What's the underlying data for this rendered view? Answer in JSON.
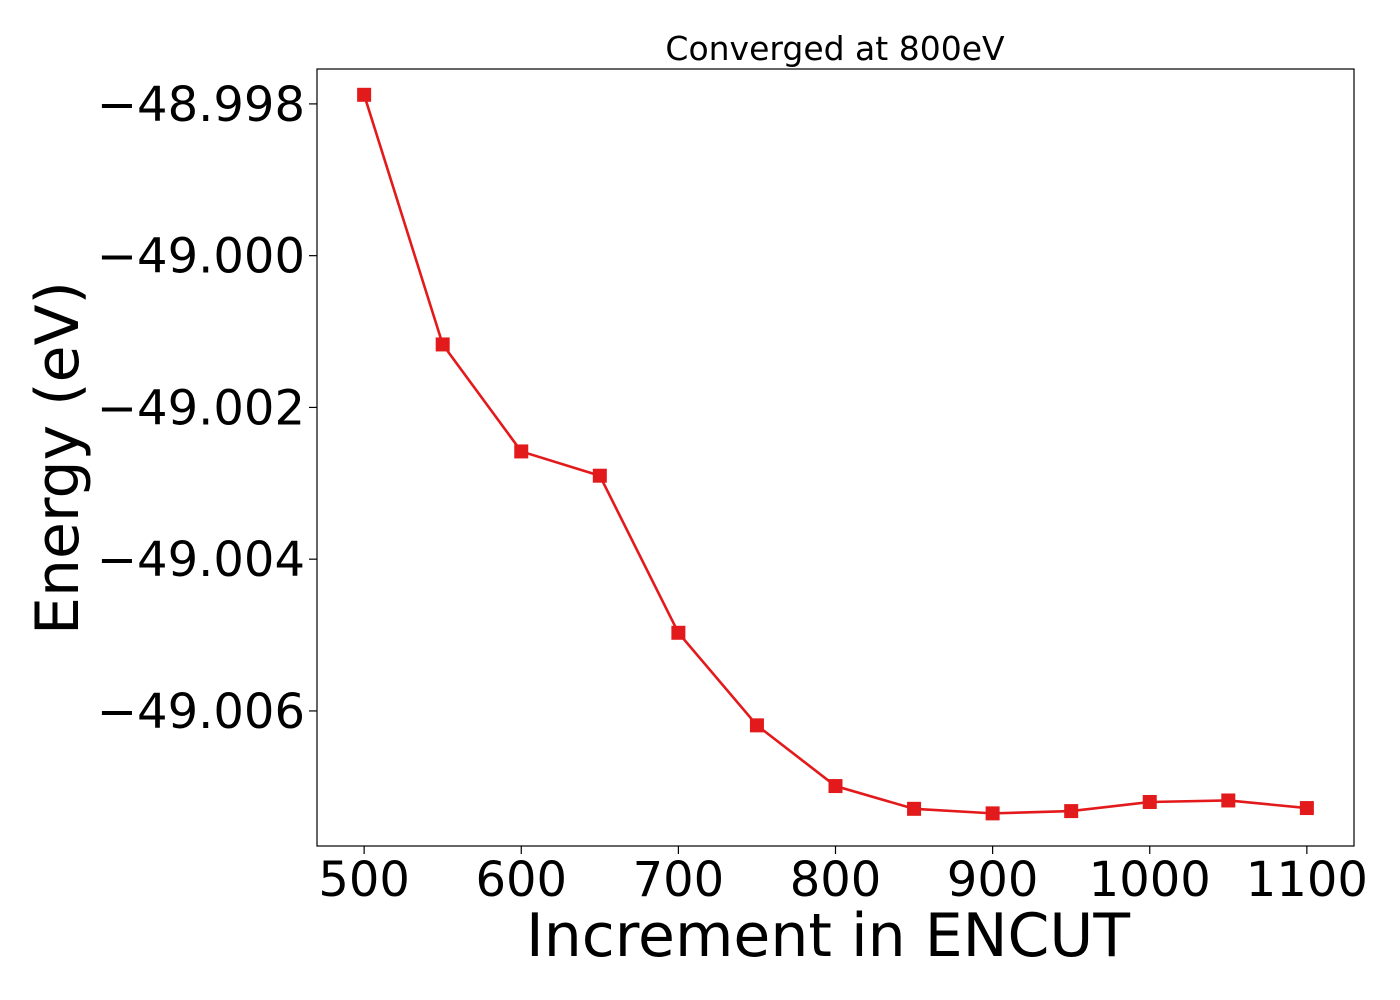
{
  "chart_data": {
    "type": "line",
    "title": "Converged at 800eV",
    "xlabel": "Increment in ENCUT",
    "ylabel": "Energy (eV)",
    "xlim": [
      470,
      1130
    ],
    "ylim": [
      -49.00778,
      -48.99754
    ],
    "xticks": [
      500,
      600,
      700,
      800,
      900,
      1000,
      1100
    ],
    "yticks": [
      -48.998,
      -49.0,
      -49.002,
      -49.004,
      -49.006
    ],
    "ytick_labels": [
      "−48.998",
      "−49.000",
      "−49.002",
      "−49.004",
      "−49.006"
    ],
    "grid": false,
    "legend": "none",
    "series": [
      {
        "color": "#e31a1c",
        "marker": "square",
        "x": [
          500,
          550,
          600,
          650,
          700,
          750,
          800,
          850,
          900,
          950,
          1000,
          1050,
          1100
        ],
        "y": [
          -48.99788,
          -49.00117,
          -49.00258,
          -49.0029,
          -49.00497,
          -49.00619,
          -49.00699,
          -49.00729,
          -49.00735,
          -49.00732,
          -49.0072,
          -49.00718,
          -49.00728
        ]
      }
    ]
  }
}
